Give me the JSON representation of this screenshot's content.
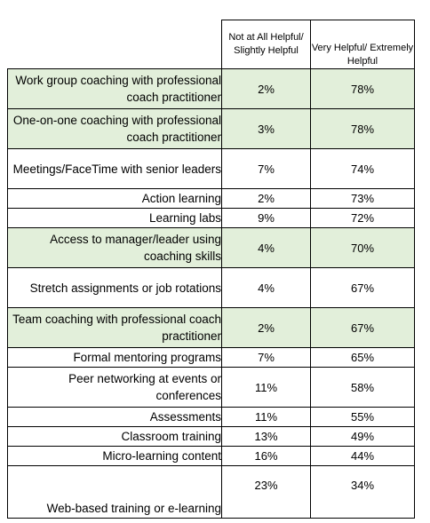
{
  "header": {
    "col1": "Not at All Helpful/ Slightly Helpful",
    "col2": "Very Helpful/ Extremely Helpful"
  },
  "rows": [
    {
      "label": "Work group coaching with professional coach practitioner",
      "not_helpful": "2%",
      "very_helpful": "78%",
      "highlight": true
    },
    {
      "label": "One-on-one coaching with professional coach practitioner",
      "not_helpful": "3%",
      "very_helpful": "78%",
      "highlight": true
    },
    {
      "label": "Meetings/FaceTime with senior leaders",
      "not_helpful": "7%",
      "very_helpful": "74%",
      "highlight": false
    },
    {
      "label": "Action learning",
      "not_helpful": "2%",
      "very_helpful": "73%",
      "highlight": false
    },
    {
      "label": "Learning labs",
      "not_helpful": "9%",
      "very_helpful": "72%",
      "highlight": false
    },
    {
      "label": "Access to manager/leader using coaching skills",
      "not_helpful": "4%",
      "very_helpful": "70%",
      "highlight": true
    },
    {
      "label": "Stretch assignments or job rotations",
      "not_helpful": "4%",
      "very_helpful": "67%",
      "highlight": false
    },
    {
      "label": "Team coaching with professional coach practitioner",
      "not_helpful": "2%",
      "very_helpful": "67%",
      "highlight": true
    },
    {
      "label": "Formal mentoring programs",
      "not_helpful": "7%",
      "very_helpful": "65%",
      "highlight": false
    },
    {
      "label": "Peer networking at events or conferences",
      "not_helpful": "11%",
      "very_helpful": "58%",
      "highlight": false
    },
    {
      "label": "Assessments",
      "not_helpful": "11%",
      "very_helpful": "55%",
      "highlight": false
    },
    {
      "label": "Classroom training",
      "not_helpful": "13%",
      "very_helpful": "49%",
      "highlight": false
    },
    {
      "label": "Micro-learning content",
      "not_helpful": "16%",
      "very_helpful": "44%",
      "highlight": false
    },
    {
      "label": "Web-based training or e-learning",
      "not_helpful": "23%",
      "very_helpful": "34%",
      "highlight": false
    }
  ],
  "colors": {
    "highlight_row": "#e2efda",
    "border": "#000000",
    "text": "#000000"
  }
}
